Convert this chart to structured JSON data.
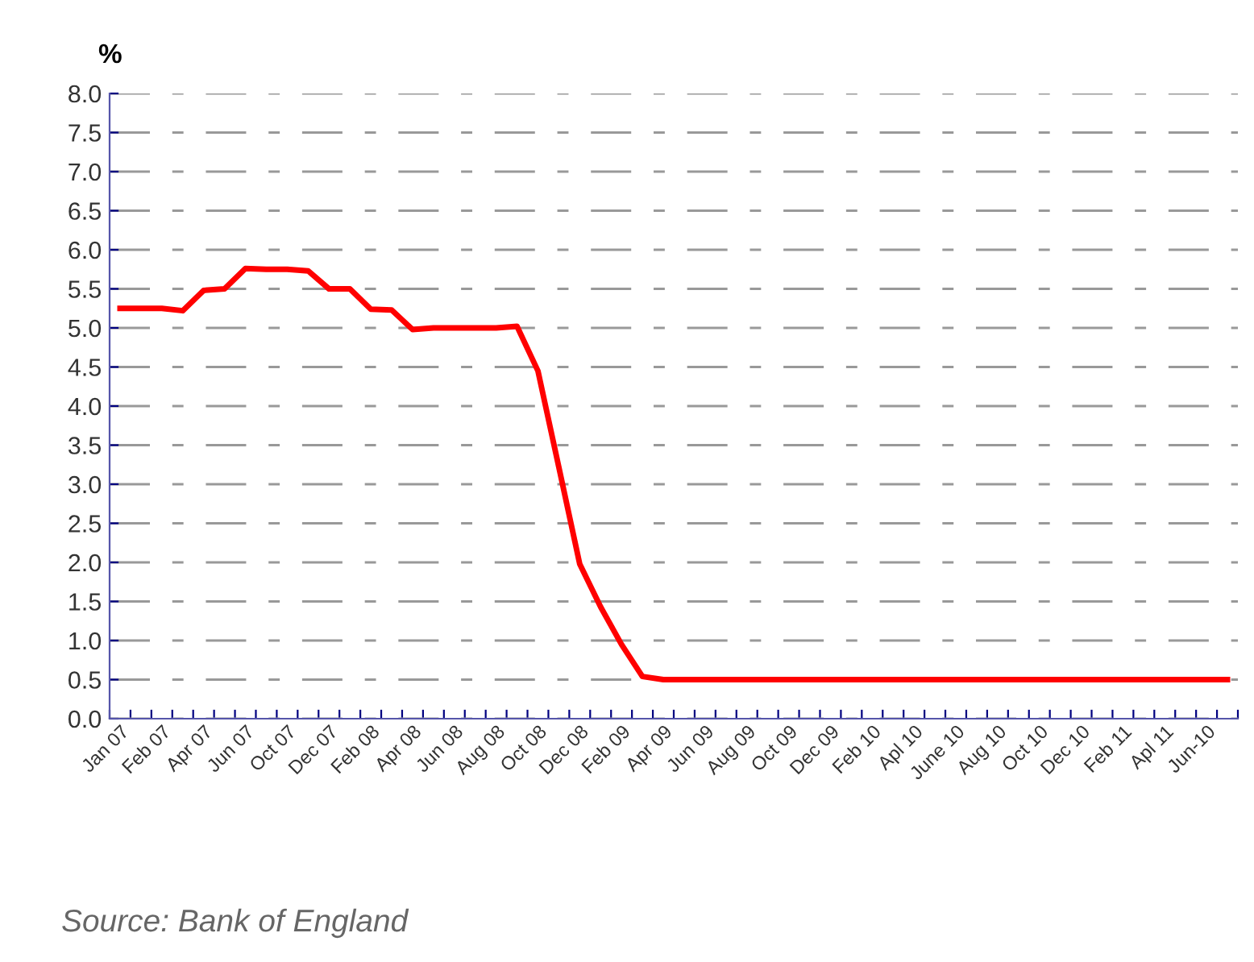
{
  "chart_data": {
    "type": "line",
    "ylabel": "%",
    "categories": [
      "Jan 07",
      null,
      "Feb 07",
      null,
      "Apr 07",
      null,
      "Jun 07",
      null,
      "Oct 07",
      null,
      "Dec 07",
      null,
      "Feb 08",
      null,
      "Apr 08",
      null,
      "Jun 08",
      null,
      "Aug 08",
      null,
      "Oct 08",
      null,
      "Dec 08",
      null,
      "Feb 09",
      null,
      "Apr 09",
      null,
      "Jun 09",
      null,
      "Aug 09",
      null,
      "Oct 09",
      null,
      "Dec 09",
      null,
      "Feb 10",
      null,
      "Apl 10",
      null,
      "June 10",
      null,
      "Aug 10",
      null,
      "Oct 10",
      null,
      "Dec 10",
      null,
      "Feb 11",
      null,
      "Apl 11",
      null,
      "Jun-10",
      null
    ],
    "series": [
      {
        "color": "#ff0000",
        "values": [
          5.25,
          5.25,
          5.25,
          5.22,
          5.48,
          5.5,
          5.76,
          5.75,
          5.75,
          5.73,
          5.5,
          5.5,
          5.24,
          5.23,
          4.98,
          5.0,
          5.0,
          5.0,
          5.0,
          5.02,
          4.45,
          3.22,
          1.98,
          1.43,
          0.95,
          0.54,
          0.5,
          0.5,
          0.5,
          0.5,
          0.5,
          0.5,
          0.5,
          0.5,
          0.5,
          0.5,
          0.5,
          0.5,
          0.5,
          0.5,
          0.5,
          0.5,
          0.5,
          0.5,
          0.5,
          0.5,
          0.5,
          0.5,
          0.5,
          0.5,
          0.5,
          0.5,
          0.5,
          0.5
        ]
      }
    ],
    "ylim": [
      0,
      8
    ],
    "yticks": [
      {
        "value": 0,
        "label": "0.0"
      },
      {
        "value": 0.5,
        "label": "0.5"
      },
      {
        "value": 1,
        "label": "1.0"
      },
      {
        "value": 1.5,
        "label": "1.5"
      },
      {
        "value": 2,
        "label": "2.0"
      },
      {
        "value": 2.5,
        "label": "2.5"
      },
      {
        "value": 3,
        "label": "3.0"
      },
      {
        "value": 3.5,
        "label": "3.5"
      },
      {
        "value": 4,
        "label": "4.0"
      },
      {
        "value": 4.5,
        "label": "4.5"
      },
      {
        "value": 5,
        "label": "5.0"
      },
      {
        "value": 5.5,
        "label": "5.5"
      },
      {
        "value": 6,
        "label": "6.0"
      },
      {
        "value": 6.5,
        "label": "6.5"
      },
      {
        "value": 7,
        "label": "7.0"
      },
      {
        "value": 7.5,
        "label": "7.5"
      },
      {
        "value": 8,
        "label": "8.0"
      }
    ],
    "grid": "y",
    "marker": "none",
    "line_style": "solid",
    "annotations": [
      "Source: Bank of England"
    ]
  }
}
